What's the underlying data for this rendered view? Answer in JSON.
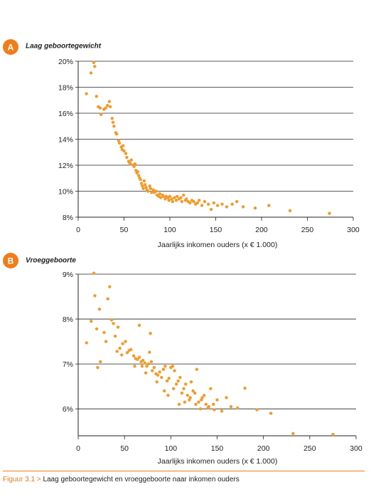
{
  "colors": {
    "accent": "#ef7d1a",
    "dot": "#f39a2c",
    "grid": "#222222"
  },
  "chart_data": [
    {
      "type": "scatter",
      "badge": "A",
      "title": "Laag geboortegewicht",
      "xlabel": "Jaarlijks inkomen ouders (x € 1.000)",
      "ylabel": "",
      "xlim": [
        0,
        300
      ],
      "ylim": [
        8,
        20
      ],
      "xticks": [
        0,
        50,
        100,
        150,
        200,
        250,
        300
      ],
      "yticks": [
        8,
        10,
        12,
        14,
        16,
        18,
        20
      ],
      "ytick_labels": [
        "8%",
        "10%",
        "12%",
        "14%",
        "16%",
        "18%",
        "20%"
      ],
      "grid": "horizontal",
      "points": [
        [
          17,
          19.9
        ],
        [
          18,
          19.6
        ],
        [
          14,
          19.1
        ],
        [
          9,
          17.5
        ],
        [
          20,
          17.3
        ],
        [
          22,
          16.5
        ],
        [
          24,
          16.4
        ],
        [
          25,
          15.9
        ],
        [
          28,
          16.3
        ],
        [
          30,
          16.4
        ],
        [
          32,
          16.6
        ],
        [
          34,
          16.9
        ],
        [
          35,
          16.5
        ],
        [
          37,
          15.6
        ],
        [
          38,
          15.3
        ],
        [
          39,
          15.0
        ],
        [
          41,
          14.5
        ],
        [
          42,
          14.4
        ],
        [
          44,
          13.9
        ],
        [
          45,
          13.7
        ],
        [
          47,
          13.4
        ],
        [
          48,
          13.2
        ],
        [
          49,
          13.5
        ],
        [
          50,
          13.1
        ],
        [
          52,
          12.9
        ],
        [
          53,
          12.6
        ],
        [
          55,
          12.3
        ],
        [
          56,
          12.2
        ],
        [
          57,
          12.1
        ],
        [
          58,
          12.4
        ],
        [
          60,
          12.0
        ],
        [
          61,
          11.9
        ],
        [
          62,
          12.1
        ],
        [
          63,
          11.6
        ],
        [
          64,
          11.4
        ],
        [
          65,
          11.5
        ],
        [
          66,
          11.2
        ],
        [
          67,
          11.0
        ],
        [
          68,
          10.9
        ],
        [
          69,
          10.6
        ],
        [
          70,
          10.4
        ],
        [
          71,
          10.2
        ],
        [
          72,
          10.8
        ],
        [
          73,
          10.5
        ],
        [
          74,
          10.3
        ],
        [
          75,
          10.1
        ],
        [
          76,
          10.0
        ],
        [
          78,
          10.4
        ],
        [
          79,
          10.2
        ],
        [
          80,
          9.9
        ],
        [
          82,
          10.1
        ],
        [
          83,
          9.9
        ],
        [
          85,
          10.0
        ],
        [
          86,
          9.7
        ],
        [
          88,
          9.6
        ],
        [
          89,
          9.8
        ],
        [
          90,
          9.5
        ],
        [
          92,
          9.7
        ],
        [
          93,
          9.6
        ],
        [
          95,
          9.4
        ],
        [
          96,
          9.6
        ],
        [
          98,
          9.5
        ],
        [
          99,
          9.3
        ],
        [
          100,
          9.6
        ],
        [
          102,
          9.4
        ],
        [
          103,
          9.2
        ],
        [
          105,
          9.5
        ],
        [
          107,
          9.3
        ],
        [
          108,
          9.6
        ],
        [
          110,
          9.4
        ],
        [
          112,
          9.5
        ],
        [
          113,
          9.2
        ],
        [
          115,
          9.7
        ],
        [
          117,
          9.3
        ],
        [
          118,
          9.4
        ],
        [
          120,
          9.2
        ],
        [
          122,
          9.1
        ],
        [
          124,
          9.3
        ],
        [
          126,
          9.2
        ],
        [
          128,
          9.0
        ],
        [
          130,
          9.1
        ],
        [
          132,
          9.3
        ],
        [
          135,
          8.9
        ],
        [
          138,
          9.2
        ],
        [
          142,
          9.0
        ],
        [
          145,
          8.6
        ],
        [
          148,
          9.1
        ],
        [
          152,
          8.9
        ],
        [
          157,
          9.0
        ],
        [
          162,
          8.8
        ],
        [
          168,
          9.0
        ],
        [
          173,
          9.2
        ],
        [
          180,
          8.8
        ],
        [
          193,
          8.7
        ],
        [
          208,
          8.9
        ],
        [
          231,
          8.5
        ],
        [
          274,
          8.3
        ]
      ]
    },
    {
      "type": "scatter",
      "badge": "B",
      "title": "Vroeggeboorte",
      "xlabel": "Jaarlijks inkomen ouders (x € 1.000)",
      "ylabel": "",
      "xlim": [
        0,
        300
      ],
      "ylim": [
        5.4,
        9
      ],
      "xticks": [
        0,
        50,
        100,
        150,
        200,
        250,
        300
      ],
      "yticks": [
        6,
        7,
        8,
        9
      ],
      "ytick_labels": [
        "6%",
        "7%",
        "8%",
        "9%"
      ],
      "grid": "horizontal",
      "points": [
        [
          17,
          9.02
        ],
        [
          18,
          8.52
        ],
        [
          34,
          8.72
        ],
        [
          32,
          8.45
        ],
        [
          23,
          8.22
        ],
        [
          14,
          7.95
        ],
        [
          36,
          7.98
        ],
        [
          38,
          7.9
        ],
        [
          20,
          7.78
        ],
        [
          43,
          7.82
        ],
        [
          28,
          7.7
        ],
        [
          40,
          7.62
        ],
        [
          66,
          7.86
        ],
        [
          78,
          7.68
        ],
        [
          9,
          7.47
        ],
        [
          30,
          7.5
        ],
        [
          48,
          7.45
        ],
        [
          51,
          7.5
        ],
        [
          55,
          7.3
        ],
        [
          45,
          7.35
        ],
        [
          42,
          7.28
        ],
        [
          47,
          7.2
        ],
        [
          53,
          7.25
        ],
        [
          57,
          7.32
        ],
        [
          60,
          7.18
        ],
        [
          62,
          7.12
        ],
        [
          64,
          7.1
        ],
        [
          66,
          7.15
        ],
        [
          68,
          7.05
        ],
        [
          70,
          7.08
        ],
        [
          72,
          7.02
        ],
        [
          74,
          6.95
        ],
        [
          76,
          7.0
        ],
        [
          77,
          7.26
        ],
        [
          79,
          7.05
        ],
        [
          80,
          6.85
        ],
        [
          82,
          6.92
        ],
        [
          84,
          6.78
        ],
        [
          86,
          6.75
        ],
        [
          88,
          6.82
        ],
        [
          90,
          6.7
        ],
        [
          92,
          6.88
        ],
        [
          94,
          6.95
        ],
        [
          96,
          6.62
        ],
        [
          98,
          6.68
        ],
        [
          100,
          6.92
        ],
        [
          102,
          6.95
        ],
        [
          104,
          6.85
        ],
        [
          106,
          6.55
        ],
        [
          108,
          6.62
        ],
        [
          110,
          6.7
        ],
        [
          112,
          6.35
        ],
        [
          114,
          6.45
        ],
        [
          116,
          6.55
        ],
        [
          118,
          6.3
        ],
        [
          120,
          6.2
        ],
        [
          122,
          6.6
        ],
        [
          124,
          6.4
        ],
        [
          126,
          6.35
        ],
        [
          128,
          6.88
        ],
        [
          130,
          6.15
        ],
        [
          132,
          6.0
        ],
        [
          134,
          6.25
        ],
        [
          136,
          6.3
        ],
        [
          138,
          6.1
        ],
        [
          140,
          6.02
        ],
        [
          143,
          6.45
        ],
        [
          147,
          5.98
        ],
        [
          150,
          6.2
        ],
        [
          155,
          5.95
        ],
        [
          160,
          6.25
        ],
        [
          165,
          6.05
        ],
        [
          172,
          6.02
        ],
        [
          180,
          6.46
        ],
        [
          193,
          5.98
        ],
        [
          208,
          5.9
        ],
        [
          232,
          5.45
        ],
        [
          275,
          5.43
        ],
        [
          21,
          6.92
        ],
        [
          24,
          7.05
        ],
        [
          61,
          6.95
        ],
        [
          69,
          6.95
        ],
        [
          73,
          6.8
        ],
        [
          85,
          6.6
        ],
        [
          93,
          6.4
        ],
        [
          97,
          6.3
        ],
        [
          103,
          6.45
        ],
        [
          109,
          6.1
        ],
        [
          115,
          6.15
        ],
        [
          121,
          6.25
        ],
        [
          127,
          6.1
        ],
        [
          133,
          6.2
        ],
        [
          141,
          6.05
        ],
        [
          146,
          6.1
        ]
      ]
    }
  ],
  "caption": {
    "label": "Figuur 3.1 >",
    "text": "Laag geboortegewicht en vroeggeboorte naar inkomen ouders"
  }
}
